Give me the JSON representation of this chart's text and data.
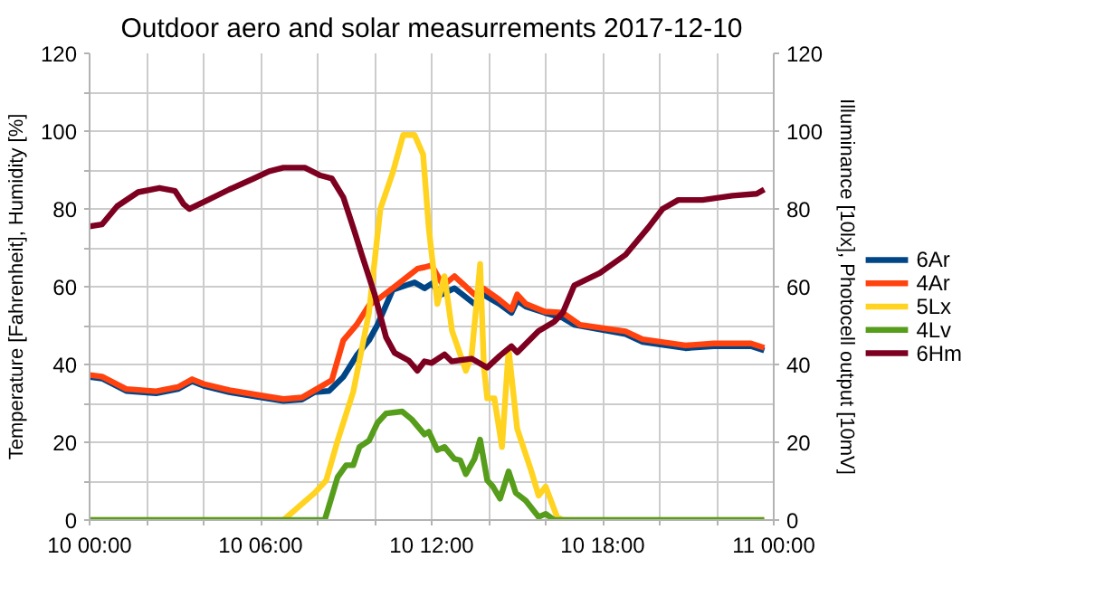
{
  "chart_data": {
    "type": "line",
    "title": "Outdoor aero and solar measurrements 2017-12-10",
    "ylabel": "Temperature [Fahrenheit], Humidity [%]",
    "y2label": "Illuminance [10lx], Photocell output [10mV]",
    "xlim": [
      "2017-12-10T00:00",
      "2017-12-11T00:00"
    ],
    "xticks": [
      {
        "value": "2017-12-10T00:00",
        "label": "10 00:00"
      },
      {
        "value": "2017-12-10T02:00",
        "label": null
      },
      {
        "value": "2017-12-10T04:00",
        "label": null
      },
      {
        "value": "2017-12-10T06:00",
        "label": "10 06:00"
      },
      {
        "value": "2017-12-10T08:00",
        "label": null
      },
      {
        "value": "2017-12-10T10:00",
        "label": null
      },
      {
        "value": "2017-12-10T12:00",
        "label": "10 12:00"
      },
      {
        "value": "2017-12-10T14:00",
        "label": null
      },
      {
        "value": "2017-12-10T16:00",
        "label": null
      },
      {
        "value": "2017-12-10T18:00",
        "label": "10 18:00"
      },
      {
        "value": "2017-12-10T20:00",
        "label": null
      },
      {
        "value": "2017-12-10T22:00",
        "label": null
      },
      {
        "value": "2017-12-11T00:00",
        "label": "11 00:00"
      }
    ],
    "ylim": [
      0,
      120
    ],
    "yticks": [
      0,
      {
        "value": 10,
        "label": null
      },
      20,
      {
        "value": 30,
        "label": null
      },
      40,
      {
        "value": 50,
        "label": null
      },
      60,
      {
        "value": 70,
        "label": null
      },
      80,
      {
        "value": 90,
        "label": null
      },
      100,
      {
        "value": 110,
        "label": null
      },
      120
    ],
    "y2lim": [
      0,
      120
    ],
    "y2ticks": [
      0,
      20,
      40,
      60,
      80,
      100,
      120
    ],
    "grid": true,
    "legend": "right",
    "line_style": "solid",
    "series": [
      {
        "name": "6Ar",
        "color": "#004586",
        "x": [
          "2017-12-10T00:00",
          "2017-12-10T00:26",
          "2017-12-10T01:17",
          "2017-12-10T02:20",
          "2017-12-10T03:06",
          "2017-12-10T03:36",
          "2017-12-10T04:00",
          "2017-12-10T04:54",
          "2017-12-10T06:12",
          "2017-12-10T06:48",
          "2017-12-10T07:27",
          "2017-12-10T07:54",
          "2017-12-10T08:24",
          "2017-12-10T08:54",
          "2017-12-10T09:22",
          "2017-12-10T09:48",
          "2017-12-10T10:06",
          "2017-12-10T10:38",
          "2017-12-10T11:24",
          "2017-12-10T11:45",
          "2017-12-10T12:00",
          "2017-12-10T12:21",
          "2017-12-10T12:48",
          "2017-12-10T13:30",
          "2017-12-10T13:48",
          "2017-12-10T14:22",
          "2017-12-10T14:48",
          "2017-12-10T15:00",
          "2017-12-10T15:18",
          "2017-12-10T15:58",
          "2017-12-10T16:36",
          "2017-12-10T17:00",
          "2017-12-10T18:48",
          "2017-12-10T19:24",
          "2017-12-10T20:54",
          "2017-12-10T21:54",
          "2017-12-10T23:12",
          "2017-12-10T23:40"
        ],
        "values": [
          36.8,
          36.4,
          33.2,
          32.6,
          33.7,
          35.7,
          34.5,
          32.9,
          31.3,
          30.6,
          31,
          32.9,
          33.2,
          36.8,
          42.3,
          46.2,
          50.2,
          59.2,
          61.1,
          59.6,
          60.8,
          58,
          59.6,
          55.6,
          58,
          55.6,
          53.3,
          56.4,
          54.9,
          53.3,
          52,
          50.2,
          47.8,
          45.8,
          44.2,
          44.7,
          44.7,
          43.6
        ]
      },
      {
        "name": "4Ar",
        "color": "#ff420e",
        "x": [
          "2017-12-10T00:00",
          "2017-12-10T00:26",
          "2017-12-10T01:17",
          "2017-12-10T02:20",
          "2017-12-10T03:06",
          "2017-12-10T03:36",
          "2017-12-10T04:00",
          "2017-12-10T04:54",
          "2017-12-10T06:12",
          "2017-12-10T06:48",
          "2017-12-10T07:27",
          "2017-12-10T07:54",
          "2017-12-10T08:30",
          "2017-12-10T08:54",
          "2017-12-10T09:22",
          "2017-12-10T09:48",
          "2017-12-10T10:12",
          "2017-12-10T10:45",
          "2017-12-10T11:30",
          "2017-12-10T11:45",
          "2017-12-10T12:00",
          "2017-12-10T12:24",
          "2017-12-10T12:48",
          "2017-12-10T13:30",
          "2017-12-10T13:48",
          "2017-12-10T14:22",
          "2017-12-10T14:48",
          "2017-12-10T15:00",
          "2017-12-10T15:18",
          "2017-12-10T15:58",
          "2017-12-10T16:36",
          "2017-12-10T17:12",
          "2017-12-10T18:48",
          "2017-12-10T19:24",
          "2017-12-10T20:54",
          "2017-12-10T21:54",
          "2017-12-10T23:12",
          "2017-12-10T23:40"
        ],
        "values": [
          37.3,
          36.9,
          33.7,
          33.1,
          34.2,
          36.2,
          35,
          33.4,
          31.8,
          31.1,
          31.5,
          33.4,
          36,
          46.2,
          50.2,
          55.2,
          57.2,
          60.3,
          64.6,
          65,
          65.5,
          60.3,
          62.7,
          58,
          59.6,
          56.7,
          54.1,
          58,
          55.6,
          53.6,
          53.3,
          50.2,
          48.5,
          46.5,
          44.9,
          45.4,
          45.4,
          44.3
        ]
      },
      {
        "name": "5Lx",
        "color": "#ffd320",
        "x": [
          "2017-12-10T00:00",
          "2017-12-10T06:48",
          "2017-12-10T07:54",
          "2017-12-10T08:18",
          "2017-12-10T08:42",
          "2017-12-10T09:15",
          "2017-12-10T09:48",
          "2017-12-10T10:12",
          "2017-12-10T10:38",
          "2017-12-10T11:00",
          "2017-12-10T11:24",
          "2017-12-10T11:42",
          "2017-12-10T11:54",
          "2017-12-10T12:12",
          "2017-12-10T12:27",
          "2017-12-10T12:43",
          "2017-12-10T13:12",
          "2017-12-10T13:24",
          "2017-12-10T13:35",
          "2017-12-10T13:42",
          "2017-12-10T13:50",
          "2017-12-10T13:57",
          "2017-12-10T14:12",
          "2017-12-10T14:28",
          "2017-12-10T14:42",
          "2017-12-10T15:00",
          "2017-12-10T15:30",
          "2017-12-10T15:45",
          "2017-12-10T16:00",
          "2017-12-10T16:24",
          "2017-12-10T16:36",
          "2017-12-10T23:40"
        ],
        "values": [
          0,
          0,
          7,
          10.2,
          20.4,
          33,
          53.3,
          80,
          89.3,
          99,
          99,
          94,
          75,
          55.6,
          62.7,
          48.6,
          38.4,
          42.3,
          56.4,
          65.8,
          39.2,
          31.3,
          31.3,
          18.8,
          43.9,
          23.5,
          12.5,
          6.3,
          8.6,
          0.8,
          0,
          0
        ]
      },
      {
        "name": "4Lv",
        "color": "#579d1c",
        "x": [
          "2017-12-10T00:00",
          "2017-12-10T08:15",
          "2017-12-10T08:42",
          "2017-12-10T09:00",
          "2017-12-10T09:15",
          "2017-12-10T09:28",
          "2017-12-10T09:48",
          "2017-12-10T10:06",
          "2017-12-10T10:24",
          "2017-12-10T10:58",
          "2017-12-10T11:18",
          "2017-12-10T11:45",
          "2017-12-10T11:54",
          "2017-12-10T12:12",
          "2017-12-10T12:27",
          "2017-12-10T12:48",
          "2017-12-10T13:00",
          "2017-12-10T13:12",
          "2017-12-10T13:30",
          "2017-12-10T13:42",
          "2017-12-10T13:57",
          "2017-12-10T14:09",
          "2017-12-10T14:24",
          "2017-12-10T14:42",
          "2017-12-10T14:57",
          "2017-12-10T15:18",
          "2017-12-10T15:45",
          "2017-12-10T16:00",
          "2017-12-10T16:18",
          "2017-12-10T23:40"
        ],
        "values": [
          0,
          0,
          11,
          14.1,
          14.1,
          18.8,
          20.4,
          25,
          27.4,
          27.9,
          25.9,
          22,
          22.7,
          18,
          18.8,
          15.7,
          15.4,
          11.8,
          15.7,
          20.7,
          10.2,
          8.6,
          5.5,
          12.5,
          7,
          5,
          0.8,
          1.6,
          0,
          0
        ]
      },
      {
        "name": "6Hm",
        "color": "#7e0021",
        "x": [
          "2017-12-10T00:00",
          "2017-12-10T00:26",
          "2017-12-10T00:58",
          "2017-12-10T01:42",
          "2017-12-10T02:27",
          "2017-12-10T03:00",
          "2017-12-10T03:18",
          "2017-12-10T03:30",
          "2017-12-10T04:09",
          "2017-12-10T04:54",
          "2017-12-10T05:45",
          "2017-12-10T06:18",
          "2017-12-10T06:48",
          "2017-12-10T07:33",
          "2017-12-10T08:06",
          "2017-12-10T08:30",
          "2017-12-10T08:54",
          "2017-12-10T09:15",
          "2017-12-10T09:33",
          "2017-12-10T10:00",
          "2017-12-10T10:24",
          "2017-12-10T10:42",
          "2017-12-10T11:12",
          "2017-12-10T11:30",
          "2017-12-10T11:45",
          "2017-12-10T12:00",
          "2017-12-10T12:27",
          "2017-12-10T12:42",
          "2017-12-10T13:24",
          "2017-12-10T13:57",
          "2017-12-10T14:24",
          "2017-12-10T14:48",
          "2017-12-10T15:00",
          "2017-12-10T15:45",
          "2017-12-10T16:18",
          "2017-12-10T16:36",
          "2017-12-10T17:00",
          "2017-12-10T17:54",
          "2017-12-10T18:48",
          "2017-12-10T19:36",
          "2017-12-10T20:06",
          "2017-12-10T20:39",
          "2017-12-10T21:30",
          "2017-12-10T22:33",
          "2017-12-10T23:24",
          "2017-12-10T23:40"
        ],
        "values": [
          75.5,
          76,
          80.7,
          84.3,
          85.4,
          84.6,
          81.2,
          80,
          82.3,
          85,
          87.8,
          89.7,
          90.6,
          90.6,
          88.6,
          87.8,
          83,
          75.2,
          68.2,
          58,
          47,
          43,
          41,
          38.4,
          40.8,
          40.4,
          42.6,
          40.8,
          41.5,
          39.2,
          42.3,
          44.7,
          43.1,
          48.6,
          51,
          53.3,
          60.3,
          63.5,
          68.2,
          75.2,
          80,
          82.3,
          82.3,
          83.4,
          83.9,
          85
        ]
      }
    ]
  }
}
